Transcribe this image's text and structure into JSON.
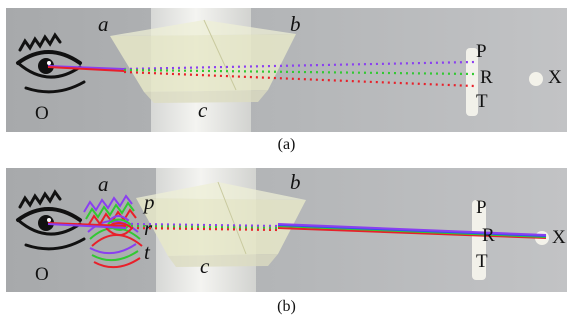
{
  "panels": [
    {
      "id": "a",
      "caption": "(a)",
      "labels": {
        "observer": "O",
        "prism_left": "a",
        "prism_right": "b",
        "prism_bottom": "c",
        "target_top": "P",
        "target_mid": "R",
        "target_bottom": "T",
        "source": "X"
      }
    },
    {
      "id": "b",
      "caption": "(b)",
      "labels": {
        "observer": "O",
        "prism_left": "a",
        "prism_right": "b",
        "prism_bottom": "c",
        "target_top": "P",
        "target_mid": "R",
        "target_bottom": "T",
        "source": "X",
        "image_top": "p",
        "image_mid": "r",
        "image_bottom": "t"
      }
    }
  ],
  "ray_colors": {
    "purple": "#8a3ff0",
    "green": "#32c832",
    "red": "#e8202a",
    "blue": "#3a4cf0"
  },
  "icons": [
    "eye-icon"
  ]
}
